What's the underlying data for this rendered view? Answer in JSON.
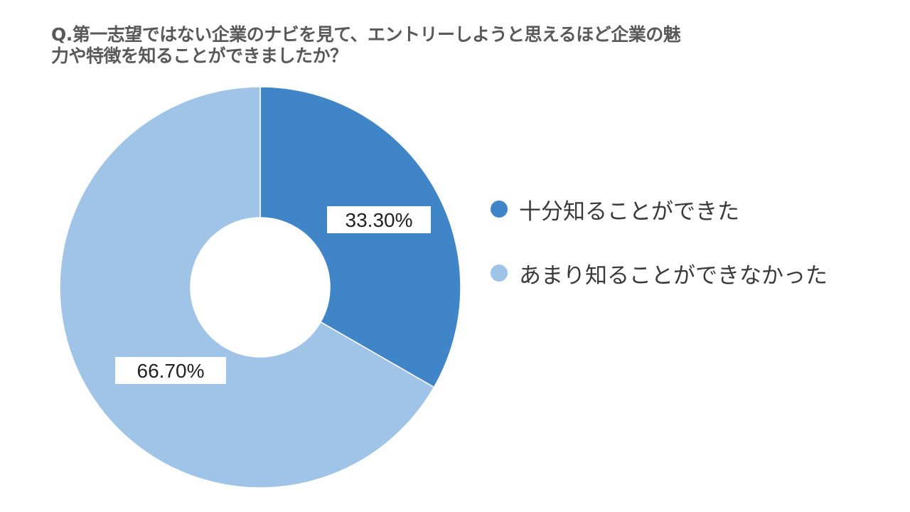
{
  "chart_data": {
    "type": "pie",
    "variant": "donut",
    "title_lines": [
      "Q.第一志望ではない企業のナビを見て、エントリーしようと思えるほど企業の魅",
      "力や特徴を知ることができましたか？"
    ],
    "categories": [
      "十分知ることができた",
      "あまり知ることができなかった"
    ],
    "values": [
      33.3,
      66.7
    ],
    "data_labels": [
      "33.30%",
      "66.70%"
    ],
    "colors": [
      "#3f85c8",
      "#a0c4e8"
    ],
    "legend_position": "right"
  }
}
